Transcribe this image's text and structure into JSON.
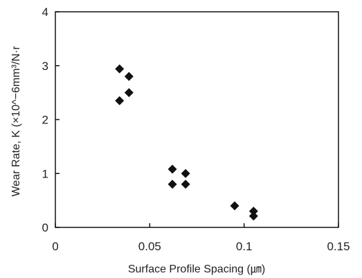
{
  "chart_data": {
    "type": "scatter",
    "title": "",
    "xlabel": "Surface Profile Spacing (㎛)",
    "ylabel": "Wear Rate, K (×10^−6mm³/N·r",
    "xlim": [
      0,
      0.15
    ],
    "ylim": [
      0,
      4
    ],
    "xticks": [
      0,
      0.05,
      0.1,
      0.15
    ],
    "xtick_labels": [
      "0",
      "0.05",
      "0.1",
      "0.15"
    ],
    "yticks": [
      0,
      1,
      2,
      3,
      4
    ],
    "ytick_labels": [
      "0",
      "1",
      "2",
      "3",
      "4"
    ],
    "grid": false,
    "legend": "none",
    "marker": "diamond",
    "marker_color": "#111111",
    "series": [
      {
        "name": "",
        "points": [
          {
            "x": 0.034,
            "y": 2.94
          },
          {
            "x": 0.039,
            "y": 2.8
          },
          {
            "x": 0.039,
            "y": 2.5
          },
          {
            "x": 0.034,
            "y": 2.35
          },
          {
            "x": 0.062,
            "y": 1.08
          },
          {
            "x": 0.069,
            "y": 1.0
          },
          {
            "x": 0.062,
            "y": 0.8
          },
          {
            "x": 0.069,
            "y": 0.8
          },
          {
            "x": 0.095,
            "y": 0.4
          },
          {
            "x": 0.105,
            "y": 0.3
          },
          {
            "x": 0.105,
            "y": 0.21
          }
        ]
      }
    ]
  }
}
